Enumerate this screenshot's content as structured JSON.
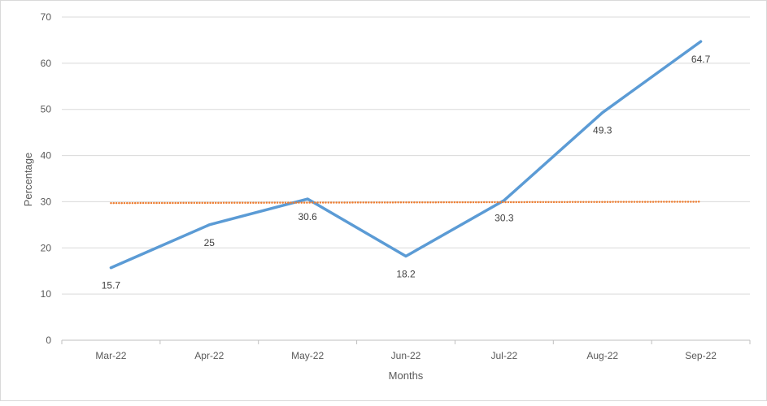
{
  "chart_data": {
    "type": "line",
    "categories": [
      "Mar-22",
      "Apr-22",
      "May-22",
      "Jun-22",
      "Jul-22",
      "Aug-22",
      "Sep-22"
    ],
    "series": [
      {
        "values": [
          15.7,
          25,
          30.6,
          18.2,
          30.3,
          49.3,
          64.7
        ],
        "data_labels": [
          "15.7",
          "25",
          "30.6",
          "18.2",
          "30.3",
          "49.3",
          "64.7"
        ],
        "color": "#5b9bd5",
        "style": "solid"
      },
      {
        "values": [
          29.7,
          29.75,
          29.8,
          29.85,
          29.9,
          29.95,
          30.0
        ],
        "color": "#ed7d31",
        "style": "dotted"
      }
    ],
    "title": "",
    "xlabel": "Months",
    "ylabel": "Percentage",
    "ylim": [
      0,
      70
    ],
    "yticks": [
      "0",
      "10",
      "20",
      "30",
      "40",
      "50",
      "60",
      "70"
    ],
    "grid": true,
    "legend": "none"
  }
}
